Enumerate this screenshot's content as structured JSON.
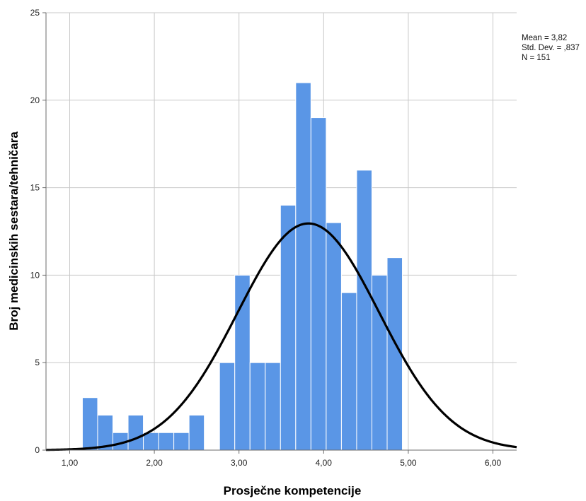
{
  "chart_data": {
    "type": "bar",
    "xlabel": "Prosječne kompetencije",
    "ylabel": "Broj medicinskih sestara/tehničara",
    "xlim": [
      0.72,
      6.28
    ],
    "ylim": [
      0,
      25
    ],
    "x_ticks": [
      1,
      2,
      3,
      4,
      5,
      6
    ],
    "x_tick_labels": [
      "1,00",
      "2,00",
      "3,00",
      "4,00",
      "5,00",
      "6,00"
    ],
    "y_ticks": [
      0,
      5,
      10,
      15,
      20,
      25
    ],
    "y_tick_labels": [
      "0",
      "5",
      "10",
      "15",
      "20",
      "25"
    ],
    "grid": true,
    "bin_width": 0.18,
    "bins": [
      {
        "start": 1.15,
        "value": 3
      },
      {
        "start": 1.33,
        "value": 2
      },
      {
        "start": 1.51,
        "value": 1
      },
      {
        "start": 1.69,
        "value": 2
      },
      {
        "start": 1.87,
        "value": 1
      },
      {
        "start": 2.05,
        "value": 1
      },
      {
        "start": 2.23,
        "value": 1
      },
      {
        "start": 2.41,
        "value": 2
      },
      {
        "start": 2.59,
        "value": 0
      },
      {
        "start": 2.77,
        "value": 5
      },
      {
        "start": 2.95,
        "value": 10
      },
      {
        "start": 3.13,
        "value": 5
      },
      {
        "start": 3.31,
        "value": 5
      },
      {
        "start": 3.49,
        "value": 14
      },
      {
        "start": 3.67,
        "value": 21
      },
      {
        "start": 3.85,
        "value": 19
      },
      {
        "start": 4.03,
        "value": 13
      },
      {
        "start": 4.21,
        "value": 9
      },
      {
        "start": 4.39,
        "value": 16
      },
      {
        "start": 4.57,
        "value": 10
      },
      {
        "start": 4.75,
        "value": 11
      }
    ],
    "normal_curve": {
      "mean": 3.82,
      "sd": 0.837,
      "n": 151
    },
    "stats_text": [
      "Mean = 3,82",
      "Std. Dev. = ,837",
      "N = 151"
    ],
    "colors": {
      "bar": "#5a96e6",
      "bar_edge": "#ffffff",
      "curve": "#000000",
      "grid": "#c8c8c8",
      "axis": "#6b6b6b"
    }
  }
}
